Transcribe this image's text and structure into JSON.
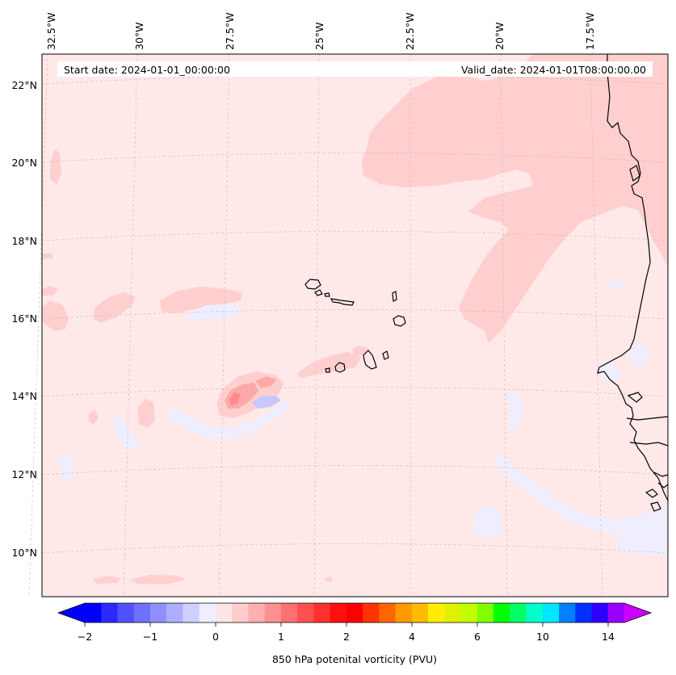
{
  "header": {
    "start_date": "Start date: 2024-01-01_00:00:00",
    "valid_date": "Valid_date: 2024-01-01T08:00:00.00"
  },
  "map": {
    "lon_labels": [
      "32.5°W",
      "30°W",
      "27.5°W",
      "25°W",
      "22.5°W",
      "20°W",
      "17.5°W"
    ],
    "lat_labels": [
      "22°N",
      "20°N",
      "18°N",
      "16°N",
      "14°N",
      "12°N",
      "10°N"
    ]
  },
  "colorbar": {
    "title": "850 hPa potenital vorticity (PVU)",
    "tick_labels": [
      "−2",
      "−1",
      "0",
      "1",
      "2",
      "4",
      "6",
      "10",
      "14"
    ],
    "colors": [
      "#0000ff",
      "#2a2aff",
      "#5050ff",
      "#7070ff",
      "#8f8fff",
      "#aeaeff",
      "#cfcfff",
      "#eeeeff",
      "#ffe6e6",
      "#ffcccc",
      "#ffafaf",
      "#ff9090",
      "#ff7070",
      "#ff5050",
      "#ff3030",
      "#ff1010",
      "#ff0000",
      "#ff3300",
      "#ff6600",
      "#ff9900",
      "#ffbb00",
      "#ffee00",
      "#e0f000",
      "#c0ff00",
      "#80ff00",
      "#00ff00",
      "#00ff66",
      "#00ffcc",
      "#00e6ff",
      "#0080ff",
      "#0030ff",
      "#3000ff",
      "#9900ff"
    ],
    "end_colors": {
      "min": "#0000ff",
      "max": "#cc00ff"
    }
  },
  "colors": {
    "background": "#ffe8e8",
    "positive_region": "#ffcfcf",
    "strong_positive": "#ffa8a8",
    "peak_positive": "#ff8c8c",
    "negative_region": "#eeeeff",
    "strong_negative": "#c8c8ff",
    "coastline": "#000000",
    "gridline": "#c8b8b8"
  }
}
